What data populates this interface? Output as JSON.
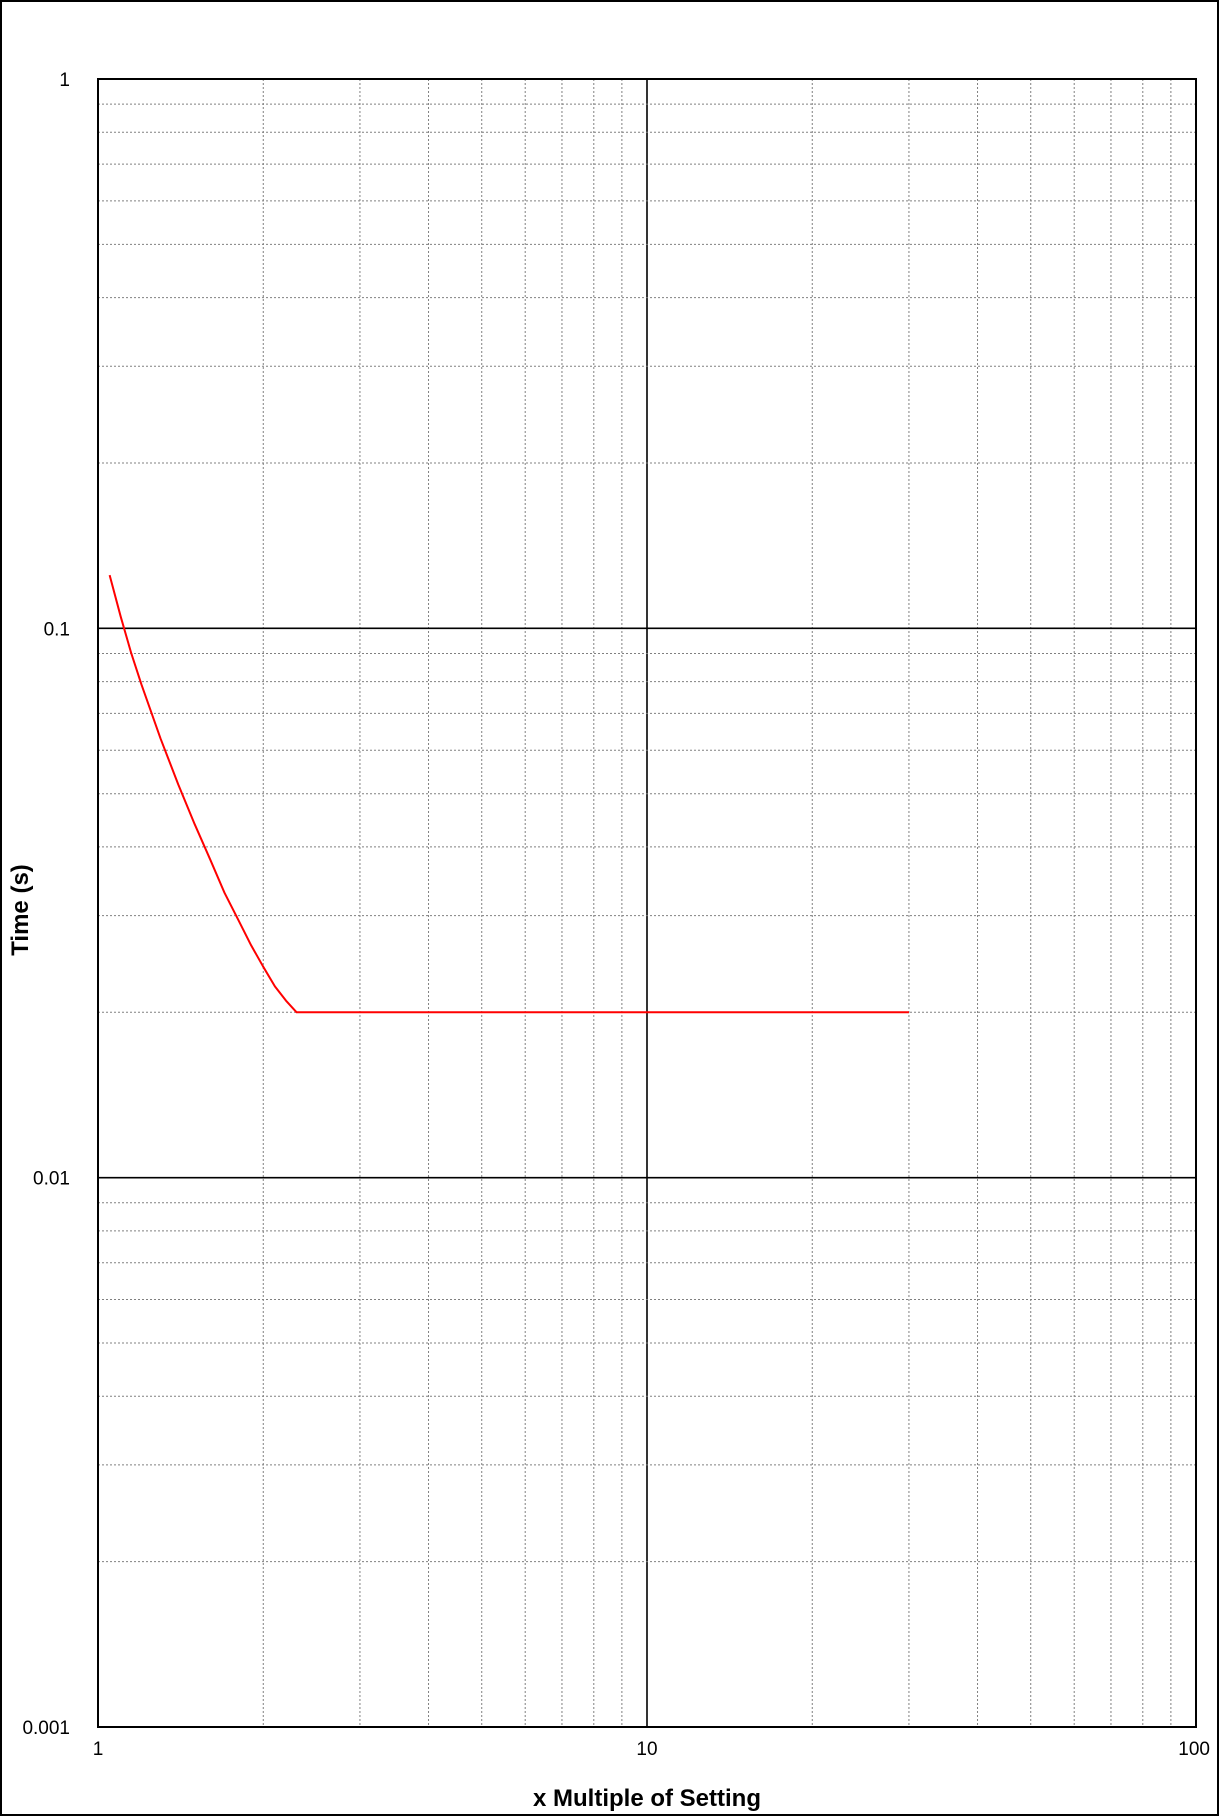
{
  "chart_data": {
    "type": "line",
    "title": "",
    "xlabel": "x Multiple of Setting",
    "ylabel": "Time (s)",
    "x_scale": "log",
    "y_scale": "log",
    "xlim": [
      1,
      100
    ],
    "ylim": [
      0.001,
      1
    ],
    "x_ticks": [
      "1",
      "10",
      "100"
    ],
    "y_ticks": [
      "0.001",
      "0.01",
      "0.1",
      "1"
    ],
    "grid": true,
    "legend": "none",
    "series": [
      {
        "color": "#ff0000",
        "x": [
          1.05,
          1.1,
          1.15,
          1.2,
          1.3,
          1.4,
          1.5,
          1.6,
          1.7,
          1.8,
          1.9,
          2.0,
          2.1,
          2.2,
          2.3,
          2.5,
          3,
          4,
          5,
          7,
          10,
          15,
          20,
          25,
          30
        ],
        "y": [
          0.125,
          0.105,
          0.09,
          0.079,
          0.063,
          0.052,
          0.044,
          0.038,
          0.033,
          0.0295,
          0.0265,
          0.0242,
          0.0223,
          0.021,
          0.02,
          0.02,
          0.02,
          0.02,
          0.02,
          0.02,
          0.02,
          0.02,
          0.02,
          0.02,
          0.02
        ]
      }
    ]
  },
  "colors": {
    "major_grid": "#000000",
    "minor_grid": "#808080",
    "curve": "#ff0000",
    "frame": "#000000",
    "background": "#ffffff"
  }
}
